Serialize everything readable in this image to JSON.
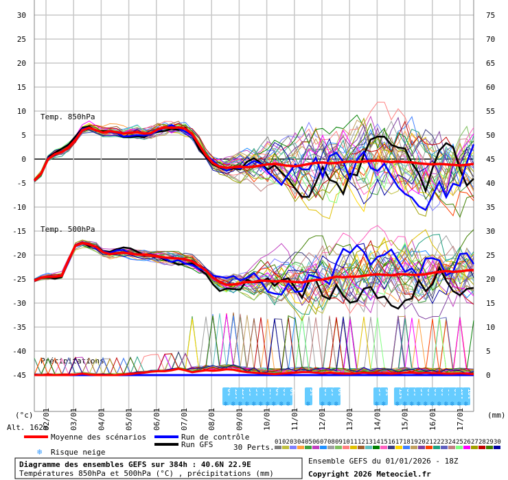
{
  "chart_data": {
    "type": "line",
    "title": "Diagramme des ensembles GEFS sur 384h : 40.6N 22.9E",
    "subtitle": "Températures 850hPa et 500hPa (°C) , précipitations (mm)",
    "left_unit": "(°c)",
    "right_unit": "(mm)",
    "altitude": "Alt. 162m",
    "left_ticks": [
      "30",
      "25",
      "20",
      "15",
      "10",
      "5",
      "0",
      "-5",
      "-10",
      "-15",
      "-20",
      "-25",
      "-30",
      "-35",
      "-40",
      "-45"
    ],
    "right_ticks": [
      "75",
      "70",
      "65",
      "60",
      "55",
      "50",
      "45",
      "40",
      "35",
      "30",
      "25",
      "20",
      "15",
      "10",
      "5",
      "0"
    ],
    "ylim_temp": [
      -45,
      30
    ],
    "ylim_precip_mm": [
      0,
      75
    ],
    "x_start_label": "02/01",
    "x_labels": [
      "03/01",
      "04/01",
      "05/01",
      "06/01",
      "07/01",
      "08/01",
      "09/01",
      "10/01",
      "11/01",
      "12/01",
      "13/01",
      "14/01",
      "15/01",
      "16/01",
      "17/01"
    ],
    "panel_labels": {
      "t850": "Temp. 850hPa",
      "t500": "Temp. 500hPa",
      "precip": "Précipitations"
    },
    "series": [
      {
        "name": "Moyenne des scénarios",
        "color": "#ff0000",
        "t850": [
          -4.5,
          -3,
          0,
          1,
          1.5,
          2.5,
          4,
          6,
          6.5,
          6,
          5.5,
          5.8,
          5.6,
          5.3,
          5.5,
          5.6,
          5.3,
          5.4,
          6.2,
          6.6,
          6.5,
          6.6,
          6.3,
          5.2,
          3,
          0.8,
          -0.8,
          -1.6,
          -1.8,
          -1.7,
          -1.6,
          -1.7,
          -1.6,
          -1.3,
          -1.1,
          -1.0,
          -1.2,
          -1.4,
          -1.5,
          -1.3,
          -1.0,
          -0.8,
          -0.7,
          -0.9,
          -0.8,
          -0.6,
          -0.5,
          -0.6,
          -0.5,
          -0.4,
          -0.3,
          -0.5,
          -0.6,
          -0.5,
          -0.6,
          -0.7,
          -0.9,
          -1.0,
          -1.1,
          -1.0,
          -1.1,
          -1.2,
          -1.3,
          -1.2,
          -1.0
        ],
        "t500": [
          -25.3,
          -24.7,
          -24.5,
          -24.5,
          -24.3,
          -21,
          -18,
          -17.5,
          -17.8,
          -18.3,
          -19.4,
          -19.8,
          -19.6,
          -19.5,
          -19.7,
          -19.9,
          -19.9,
          -20,
          -20.3,
          -20.5,
          -20.6,
          -20.7,
          -20.9,
          -21.3,
          -22.2,
          -23.2,
          -24.7,
          -25.6,
          -26.2,
          -26.1,
          -25.9,
          -25.6,
          -25.6,
          -25.3,
          -25.4,
          -25.5,
          -25.4,
          -25.5,
          -25.6,
          -25.7,
          -25.4,
          -25.2,
          -25.1,
          -24.8,
          -24.5,
          -24.6,
          -24.5,
          -24.5,
          -24.3,
          -24.1,
          -24.0,
          -24.1,
          -24.2,
          -24.0,
          -24.0,
          -24.1,
          -24.1,
          -24.0,
          -23.7,
          -23.5,
          -23.3,
          -23.5,
          -23.4,
          -23.2,
          -23.1
        ],
        "precip": [
          0,
          0,
          0,
          0,
          0,
          0,
          0.1,
          0.3,
          0.1,
          0,
          0,
          0,
          0,
          0.1,
          0.2,
          0.4,
          0.5,
          0.7,
          0.8,
          0.8,
          1.0,
          1.3,
          1.0,
          0.6,
          0.8,
          1.0,
          0.9,
          1.0,
          1.2,
          1.1,
          0.8,
          0.6,
          0.5,
          0.4,
          0.3,
          0.2,
          0.3,
          0.4,
          0.5,
          0.6,
          0.6,
          0.5,
          0.4,
          0.5,
          0.4,
          0.3,
          0.3,
          0.4,
          0.5,
          0.4,
          0.4,
          0.4,
          0.3,
          0.4,
          0.5,
          0.5,
          0.4,
          0.5,
          0.4,
          0.4,
          0.3,
          0.3,
          0.4,
          0.3,
          0.2
        ]
      },
      {
        "name": "Run de contrôle",
        "color": "#0000ff"
      },
      {
        "name": "Run GFS",
        "color": "#000000"
      }
    ],
    "legend": {
      "mean": "Moyenne des scénarios",
      "control": "Run de contrôle",
      "gfs": "Run GFS",
      "snow": "Risque neige",
      "perts": "30 Perts."
    },
    "snow_labels": [
      "6%",
      "13%",
      "13%",
      "3%",
      "3%",
      "3%",
      "10%",
      "6%",
      "6%",
      "6%",
      "3%",
      "6%",
      "3%",
      "6%",
      "3%",
      "3%",
      "13%",
      "6%",
      "3%",
      "3%",
      "6%",
      "6%",
      "6%",
      "6%",
      "6%",
      "10%",
      "16%"
    ],
    "perturbations": [
      "01",
      "02",
      "03",
      "04",
      "05",
      "06",
      "07",
      "08",
      "09",
      "10",
      "11",
      "12",
      "13",
      "14",
      "15",
      "16",
      "17",
      "18",
      "19",
      "20",
      "21",
      "22",
      "23",
      "24",
      "25",
      "26",
      "27",
      "28",
      "29",
      "30"
    ],
    "pert_colors": [
      "#7f7f7f",
      "#bfbf40",
      "#8080ff",
      "#ffa040",
      "#40a040",
      "#c040c0",
      "#2090ff",
      "#a0a0a0",
      "#80c060",
      "#ff8080",
      "#e0c000",
      "#a06030",
      "#60c0c0",
      "#008000",
      "#ff60c0",
      "#404080",
      "#ffd700",
      "#4080ff",
      "#c0a060",
      "#8040a0",
      "#ff4000",
      "#20a080",
      "#6060c0",
      "#c08080",
      "#80ff80",
      "#ff00ff",
      "#a0a000",
      "#c00000",
      "#408000",
      "#0000a0"
    ]
  },
  "footer": {
    "run": "Ensemble GEFS du 01/01/2026 - 18Z",
    "copyright": "Copyright 2026 Meteociel.fr"
  }
}
